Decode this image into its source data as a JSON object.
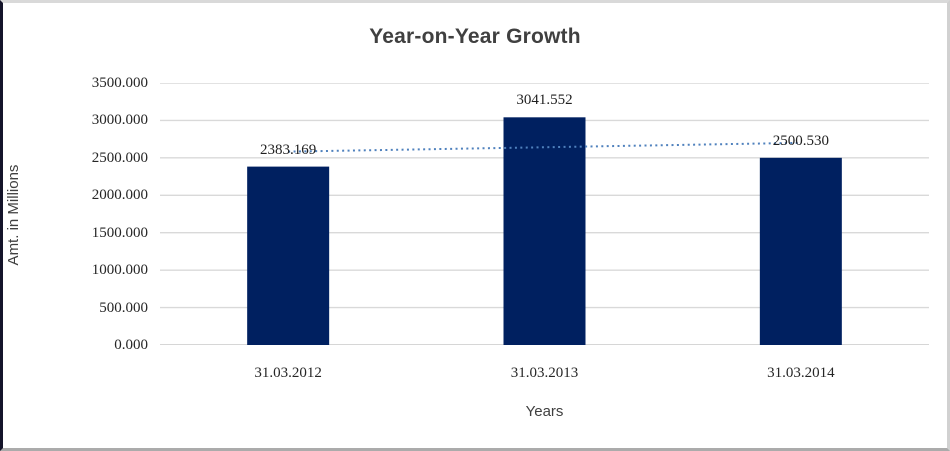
{
  "chart": {
    "title": "Year-on-Year Growth",
    "y_axis_title": "Amt. in Millions",
    "x_axis_title": "Years"
  },
  "chart_data": {
    "type": "bar",
    "title": "Year-on-Year Growth",
    "xlabel": "Years",
    "ylabel": "Amt. in Millions",
    "categories": [
      "31.03.2012",
      "31.03.2013",
      "31.03.2014"
    ],
    "values": [
      2383.169,
      3041.552,
      2500.53
    ],
    "data_labels": [
      "2383.169",
      "3041.552",
      "2500.530"
    ],
    "y_ticks_top_to_bottom": [
      "3500.000",
      "3000.000",
      "2500.000",
      "2000.000",
      "1500.000",
      "1000.000",
      "500.000",
      "0.000"
    ],
    "ylim": [
      0,
      3500
    ],
    "grid": true,
    "legend_position": "none",
    "bar_color": "#002060",
    "gridline_color": "#d9d9d9",
    "axisline_color": "#c9c9c9",
    "trendline": {
      "type": "linear",
      "style": "dotted",
      "color": "#4f81bd",
      "endpoint_values": [
        2583.07,
        2700.43
      ]
    }
  }
}
